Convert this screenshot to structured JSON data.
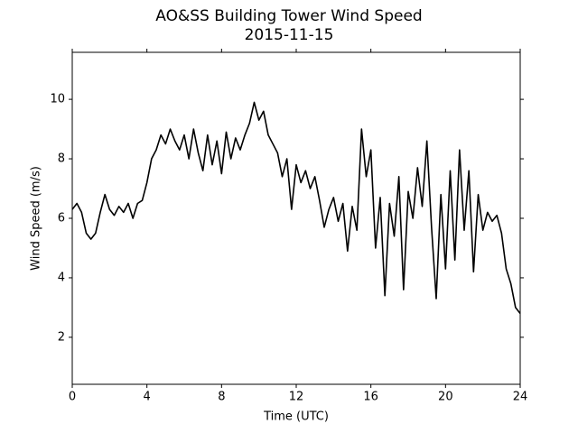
{
  "chart_data": {
    "type": "line",
    "title": "AO&SS Building Tower Wind Speed",
    "subtitle": "2015-11-15",
    "x_label": "Time (UTC)",
    "y_label": "Wind Speed (m/s)",
    "x": [
      0,
      0.25,
      0.5,
      0.75,
      1,
      1.25,
      1.5,
      1.75,
      2,
      2.25,
      2.5,
      2.75,
      3,
      3.25,
      3.5,
      3.75,
      4,
      4.25,
      4.5,
      4.75,
      5,
      5.25,
      5.5,
      5.75,
      6,
      6.25,
      6.5,
      6.75,
      7,
      7.25,
      7.5,
      7.75,
      8,
      8.25,
      8.5,
      8.75,
      9,
      9.25,
      9.5,
      9.75,
      10,
      10.25,
      10.5,
      10.75,
      11,
      11.25,
      11.5,
      11.75,
      12,
      12.25,
      12.5,
      12.75,
      13,
      13.25,
      13.5,
      13.75,
      14,
      14.25,
      14.5,
      14.75,
      15,
      15.25,
      15.5,
      15.75,
      16,
      16.25,
      16.5,
      16.75,
      17,
      17.25,
      17.5,
      17.75,
      18,
      18.25,
      18.5,
      18.75,
      19,
      19.25,
      19.5,
      19.75,
      20,
      20.25,
      20.5,
      20.75,
      21,
      21.25,
      21.5,
      21.75,
      22,
      22.25,
      22.5,
      22.75,
      23,
      23.25,
      23.5,
      23.75,
      24
    ],
    "series": [
      {
        "color": "#000000",
        "values": [
          6.3,
          6.5,
          6.2,
          5.5,
          5.3,
          5.5,
          6.2,
          6.8,
          6.3,
          6.1,
          6.4,
          6.2,
          6.5,
          6.0,
          6.5,
          6.6,
          7.2,
          8.0,
          8.3,
          8.8,
          8.5,
          9.0,
          8.6,
          8.3,
          8.8,
          8.0,
          9.0,
          8.2,
          7.6,
          8.8,
          7.8,
          8.6,
          7.5,
          8.9,
          8.0,
          8.7,
          8.3,
          8.8,
          9.2,
          9.9,
          9.3,
          9.6,
          8.8,
          8.5,
          8.2,
          7.4,
          8.0,
          6.3,
          7.8,
          7.2,
          7.6,
          7.0,
          7.4,
          6.6,
          5.7,
          6.3,
          6.7,
          5.9,
          6.5,
          4.9,
          6.4,
          5.6,
          9.0,
          7.4,
          8.3,
          5.0,
          6.7,
          3.4,
          6.5,
          5.4,
          7.4,
          3.6,
          6.9,
          6.0,
          7.7,
          6.4,
          8.6,
          5.7,
          3.3,
          6.8,
          4.3,
          7.6,
          4.6,
          8.3,
          5.6,
          7.6,
          4.2,
          6.8,
          5.6,
          6.2,
          5.9,
          6.1,
          5.5,
          4.3,
          3.8,
          3.0,
          2.8
        ]
      }
    ],
    "xlim": [
      0,
      24
    ],
    "xticks": [
      0,
      4,
      8,
      12,
      16,
      20,
      24
    ],
    "ylim": [
      0.42,
      11.58
    ],
    "yticks": [
      2,
      4,
      6,
      8,
      10
    ]
  }
}
